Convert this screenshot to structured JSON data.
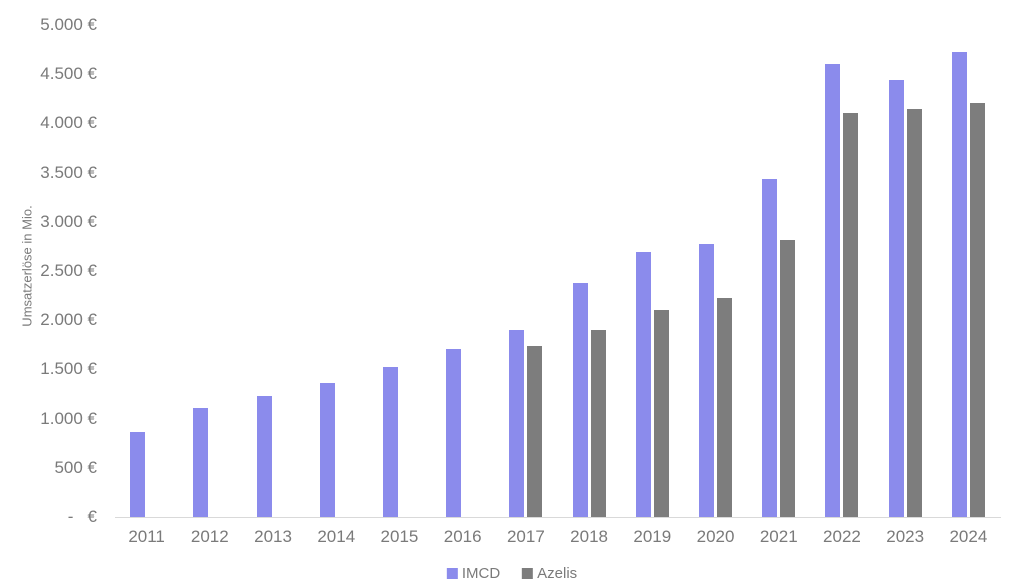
{
  "chart_data": {
    "type": "bar",
    "ylabel": "Umsatzerlöse in Mio.",
    "categories": [
      "2011",
      "2012",
      "2013",
      "2014",
      "2015",
      "2016",
      "2017",
      "2018",
      "2019",
      "2020",
      "2021",
      "2022",
      "2023",
      "2024"
    ],
    "series": [
      {
        "name": "IMCD",
        "color": "#8b8bec",
        "values": [
          860,
          1110,
          1230,
          1360,
          1525,
          1710,
          1905,
          2380,
          2690,
          2770,
          3430,
          4600,
          4440,
          4725
        ]
      },
      {
        "name": "Azelis",
        "color": "#7d7d7d",
        "values": [
          null,
          null,
          null,
          null,
          null,
          null,
          1735,
          1900,
          2100,
          2225,
          2815,
          4105,
          4150,
          4205
        ]
      }
    ],
    "ylim": [
      0,
      5000
    ],
    "y_ticks": [
      {
        "value": 0,
        "label": "-   €"
      },
      {
        "value": 500,
        "label": "500 €"
      },
      {
        "value": 1000,
        "label": "1.000 €"
      },
      {
        "value": 1500,
        "label": "1.500 €"
      },
      {
        "value": 2000,
        "label": "2.000 €"
      },
      {
        "value": 2500,
        "label": "2.500 €"
      },
      {
        "value": 3000,
        "label": "3.000 €"
      },
      {
        "value": 3500,
        "label": "3.500 €"
      },
      {
        "value": 4000,
        "label": "4.000 €"
      },
      {
        "value": 4500,
        "label": "4.500 €"
      },
      {
        "value": 5000,
        "label": "5.000 €"
      }
    ],
    "grid": false,
    "legend_position": "bottom"
  },
  "colors": {
    "text": "#7a7a7a",
    "axis_line": "#d9d9d9",
    "background": "#ffffff"
  }
}
